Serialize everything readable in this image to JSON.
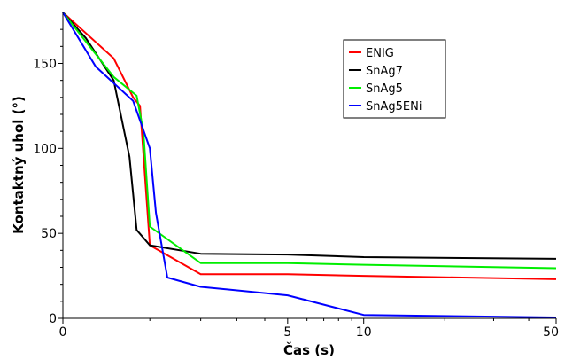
{
  "chart_data": {
    "type": "line",
    "title": "",
    "xlabel": "Čas (s)",
    "ylabel": "Kontaktný uhol (°)",
    "ylim": [
      0,
      180
    ],
    "x_scale": "log(1+x)",
    "x_tick_labels": [
      "0",
      "5",
      "10",
      "50"
    ],
    "x_tick_values": [
      0,
      5,
      10,
      50
    ],
    "y_tick_labels": [
      "0",
      "50",
      "100",
      "150"
    ],
    "y_tick_values": [
      0,
      50,
      100,
      150
    ],
    "grid": false,
    "legend_position": "top-right",
    "series": [
      {
        "name": "ENIG",
        "color": "#ff0000",
        "x": [
          0,
          0.5,
          0.75,
          0.85,
          1.0,
          2.0,
          5.0,
          10,
          50
        ],
        "y": [
          180,
          153,
          130,
          125,
          43,
          26,
          26,
          25,
          23
        ]
      },
      {
        "name": "SnAg7",
        "color": "#000000",
        "x": [
          0,
          0.2,
          0.5,
          0.7,
          0.8,
          1.0,
          2.0,
          5.0,
          10,
          50
        ],
        "y": [
          180,
          165,
          140,
          95,
          52,
          43,
          38,
          37.5,
          36,
          35
        ]
      },
      {
        "name": "SnAg5",
        "color": "#00ee00",
        "x": [
          0,
          0.5,
          0.8,
          0.9,
          1.0,
          2.0,
          5.0,
          10,
          50
        ],
        "y": [
          180,
          142,
          131,
          110,
          54,
          32.5,
          32.5,
          31.5,
          29.5
        ]
      },
      {
        "name": "SnAg5ENi",
        "color": "#0000ff",
        "x": [
          0,
          0.3,
          0.75,
          1.0,
          1.1,
          1.3,
          2.0,
          5.0,
          10,
          50
        ],
        "y": [
          180,
          148,
          128,
          100,
          62,
          24,
          18.5,
          13.5,
          2,
          0.5
        ]
      }
    ]
  }
}
